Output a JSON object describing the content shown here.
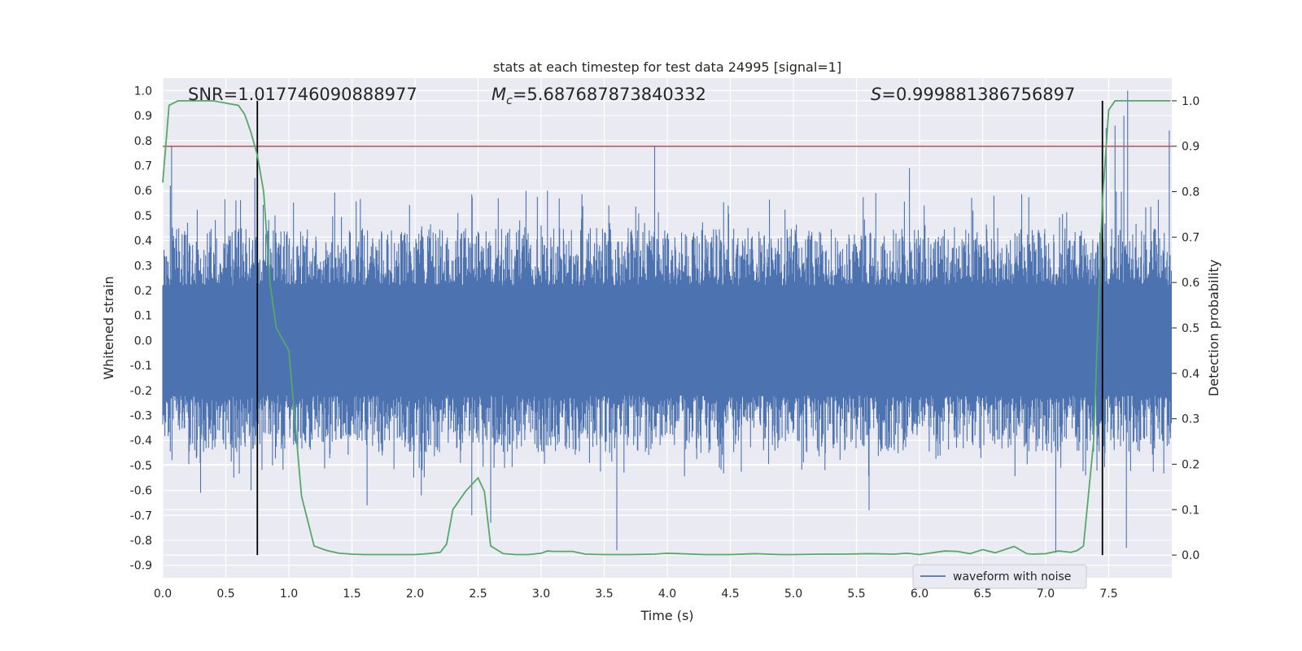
{
  "chart_data": {
    "type": "line",
    "title": "stats at each timestep for test data 24995 [signal=1]",
    "xlabel": "Time (s)",
    "ylabel": "Whitened strain",
    "y2label": "Detection probability",
    "xlim": [
      0,
      8
    ],
    "ylim": [
      -0.95,
      1.05
    ],
    "y2lim": [
      -0.05,
      1.05
    ],
    "grid": true,
    "x_ticks": [
      "0.0",
      "0.5",
      "1.0",
      "1.5",
      "2.0",
      "2.5",
      "3.0",
      "3.5",
      "4.0",
      "4.5",
      "5.0",
      "5.5",
      "6.0",
      "6.5",
      "7.0",
      "7.5"
    ],
    "y_ticks": [
      "1.0",
      "0.9",
      "0.8",
      "0.7",
      "0.6",
      "0.5",
      "0.4",
      "0.3",
      "0.2",
      "0.1",
      "0.0",
      "-0.1",
      "-0.2",
      "-0.3",
      "-0.4",
      "-0.5",
      "-0.6",
      "-0.7",
      "-0.8",
      "-0.9"
    ],
    "y2_ticks": [
      "1.0",
      "0.9",
      "0.8",
      "0.7",
      "0.6",
      "0.5",
      "0.4",
      "0.3",
      "0.2",
      "0.1",
      "0.0"
    ],
    "stats": {
      "snr": "SNR=1.017746090888977",
      "mc_symbol": "M",
      "mc_sub": "c",
      "mc_value": "=5.687687873840332",
      "s_symbol": "S",
      "s_value": "=0.999881386756897"
    },
    "threshold": {
      "y2": 0.9,
      "color": "#c44e52"
    },
    "vertical_lines": [
      0.75,
      7.45
    ],
    "series": [
      {
        "name": "waveform with noise",
        "color": "#4c72b0",
        "axis": "left",
        "envelope": {
          "core_abs": 0.22,
          "typical_max": 0.45,
          "peak_max": 1.0,
          "peak_min": -0.85
        },
        "spikes": [
          {
            "x": 0.06,
            "y": 0.62
          },
          {
            "x": 0.07,
            "y": 0.78
          },
          {
            "x": 0.3,
            "y": -0.61
          },
          {
            "x": 0.7,
            "y": -0.6
          },
          {
            "x": 0.73,
            "y": 0.65
          },
          {
            "x": 1.62,
            "y": -0.66
          },
          {
            "x": 2.05,
            "y": -0.62
          },
          {
            "x": 2.45,
            "y": -0.7
          },
          {
            "x": 2.6,
            "y": -0.73
          },
          {
            "x": 3.6,
            "y": -0.84
          },
          {
            "x": 3.9,
            "y": 0.78
          },
          {
            "x": 5.6,
            "y": -0.68
          },
          {
            "x": 5.92,
            "y": 0.69
          },
          {
            "x": 7.08,
            "y": -0.85
          },
          {
            "x": 7.48,
            "y": 0.85
          },
          {
            "x": 7.55,
            "y": 0.86
          },
          {
            "x": 7.62,
            "y": 0.9
          },
          {
            "x": 7.65,
            "y": 1.0
          },
          {
            "x": 7.64,
            "y": -0.83
          },
          {
            "x": 7.98,
            "y": 0.84
          }
        ]
      },
      {
        "name": "",
        "color": "#55a868",
        "axis": "right",
        "x": [
          0.0,
          0.05,
          0.12,
          0.2,
          0.4,
          0.6,
          0.65,
          0.7,
          0.75,
          0.8,
          0.85,
          0.9,
          1.0,
          1.1,
          1.2,
          1.3,
          1.4,
          1.5,
          1.6,
          1.8,
          2.0,
          2.1,
          2.2,
          2.25,
          2.3,
          2.4,
          2.5,
          2.55,
          2.6,
          2.7,
          2.8,
          2.9,
          3.0,
          3.05,
          3.1,
          3.25,
          3.35,
          3.5,
          3.7,
          3.9,
          4.0,
          4.1,
          4.3,
          4.5,
          4.7,
          4.8,
          4.9,
          5.0,
          5.2,
          5.4,
          5.6,
          5.8,
          5.9,
          6.0,
          6.2,
          6.3,
          6.4,
          6.5,
          6.6,
          6.75,
          6.85,
          6.9,
          7.0,
          7.1,
          7.2,
          7.25,
          7.3,
          7.38,
          7.45,
          7.5,
          7.55,
          7.6,
          7.7,
          7.99
        ],
        "y": [
          0.82,
          0.99,
          1.0,
          1.0,
          1.0,
          0.99,
          0.97,
          0.93,
          0.88,
          0.8,
          0.6,
          0.5,
          0.45,
          0.13,
          0.02,
          0.01,
          0.004,
          0.002,
          0.001,
          0.001,
          0.001,
          0.003,
          0.006,
          0.024,
          0.1,
          0.14,
          0.17,
          0.14,
          0.02,
          0.003,
          0.001,
          0.001,
          0.004,
          0.009,
          0.008,
          0.008,
          0.002,
          0.001,
          0.001,
          0.002,
          0.004,
          0.003,
          0.001,
          0.001,
          0.003,
          0.002,
          0.001,
          0.001,
          0.002,
          0.002,
          0.003,
          0.002,
          0.004,
          0.001,
          0.009,
          0.008,
          0.003,
          0.012,
          0.005,
          0.019,
          0.003,
          0.002,
          0.003,
          0.009,
          0.006,
          0.01,
          0.02,
          0.25,
          0.78,
          0.98,
          1.0,
          1.0,
          1.0,
          1.0
        ]
      }
    ],
    "legend": {
      "placement": "lower-right",
      "entries": [
        "waveform with noise"
      ]
    }
  }
}
